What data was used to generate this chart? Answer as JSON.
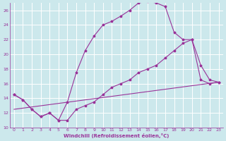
{
  "bg_color": "#cce8ec",
  "line_color": "#993399",
  "grid_color": "#ffffff",
  "xlabel": "Windchill (Refroidissement éolien,°C)",
  "xlim": [
    -0.5,
    23.5
  ],
  "ylim": [
    10,
    27
  ],
  "xticks": [
    0,
    1,
    2,
    3,
    4,
    5,
    6,
    7,
    8,
    9,
    10,
    11,
    12,
    13,
    14,
    15,
    16,
    17,
    18,
    19,
    20,
    21,
    22,
    23
  ],
  "yticks": [
    10,
    12,
    14,
    16,
    18,
    20,
    22,
    24,
    26
  ],
  "hours": [
    0,
    1,
    2,
    3,
    4,
    5,
    6,
    7,
    8,
    9,
    10,
    11,
    12,
    13,
    14,
    15,
    16,
    17,
    18,
    19,
    20,
    21,
    22,
    23
  ],
  "line1": [
    14.5,
    13.8,
    12.5,
    11.5,
    12.0,
    11.0,
    13.5,
    17.5,
    20.5,
    22.5,
    24.0,
    24.5,
    25.2,
    26.0,
    27.0,
    27.2,
    27.0,
    26.5,
    23.0,
    22.0,
    22.0,
    18.5,
    16.5,
    16.2
  ],
  "line2": [
    14.5,
    13.8,
    12.5,
    11.5,
    12.0,
    11.0,
    11.0,
    12.5,
    13.0,
    13.5,
    14.5,
    15.5,
    16.0,
    16.5,
    17.5,
    18.0,
    18.5,
    19.5,
    20.5,
    21.5,
    22.0,
    16.5,
    16.0,
    16.2
  ],
  "line3_x": [
    0,
    23
  ],
  "line3_y": [
    12.5,
    16.2
  ]
}
